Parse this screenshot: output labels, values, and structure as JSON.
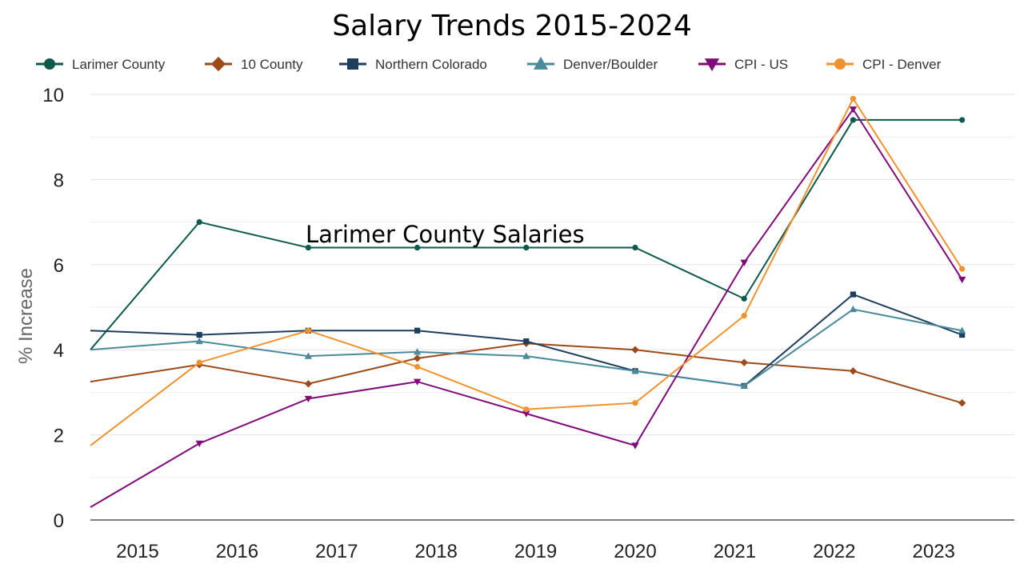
{
  "chart_data": {
    "type": "line",
    "title": "Salary Trends 2015-2024",
    "annotation": "Larimer County Salaries",
    "xlabel": "",
    "ylabel": "% Increase",
    "categories": [
      "2015",
      "2016",
      "2017",
      "2018",
      "2019",
      "2020",
      "2021",
      "2022",
      "2023"
    ],
    "ylim": [
      0,
      10
    ],
    "yticks": [
      "0",
      "2",
      "4",
      "6",
      "8",
      "10"
    ],
    "grid": true,
    "legend_position": "top",
    "series": [
      {
        "name": "Larimer County",
        "color": "#0b5a4b",
        "marker": "circle",
        "values": [
          4.0,
          7.0,
          6.4,
          6.4,
          6.4,
          6.4,
          5.2,
          9.4,
          9.4
        ]
      },
      {
        "name": "10 County",
        "color": "#9c4a1a",
        "marker": "diamond",
        "values": [
          3.25,
          3.65,
          3.2,
          3.8,
          4.15,
          4.0,
          3.7,
          3.5,
          2.75
        ]
      },
      {
        "name": "Northern Colorado",
        "color": "#1f3d5c",
        "marker": "square",
        "values": [
          4.45,
          4.35,
          4.45,
          4.45,
          4.2,
          3.5,
          3.15,
          5.3,
          4.35
        ]
      },
      {
        "name": "Denver/Boulder",
        "color": "#4a8a9a",
        "marker": "triangle",
        "values": [
          4.0,
          4.2,
          3.85,
          3.95,
          3.85,
          3.5,
          3.15,
          4.95,
          4.45
        ]
      },
      {
        "name": "CPI - US",
        "color": "#800a7a",
        "marker": "triangle-down",
        "values": [
          0.3,
          1.8,
          2.85,
          3.25,
          2.5,
          1.75,
          6.05,
          9.65,
          5.65
        ]
      },
      {
        "name": "CPI - Denver",
        "color": "#f0922e",
        "marker": "circle",
        "values": [
          1.75,
          3.7,
          4.45,
          3.6,
          2.6,
          2.75,
          4.8,
          9.9,
          5.9
        ]
      }
    ]
  }
}
